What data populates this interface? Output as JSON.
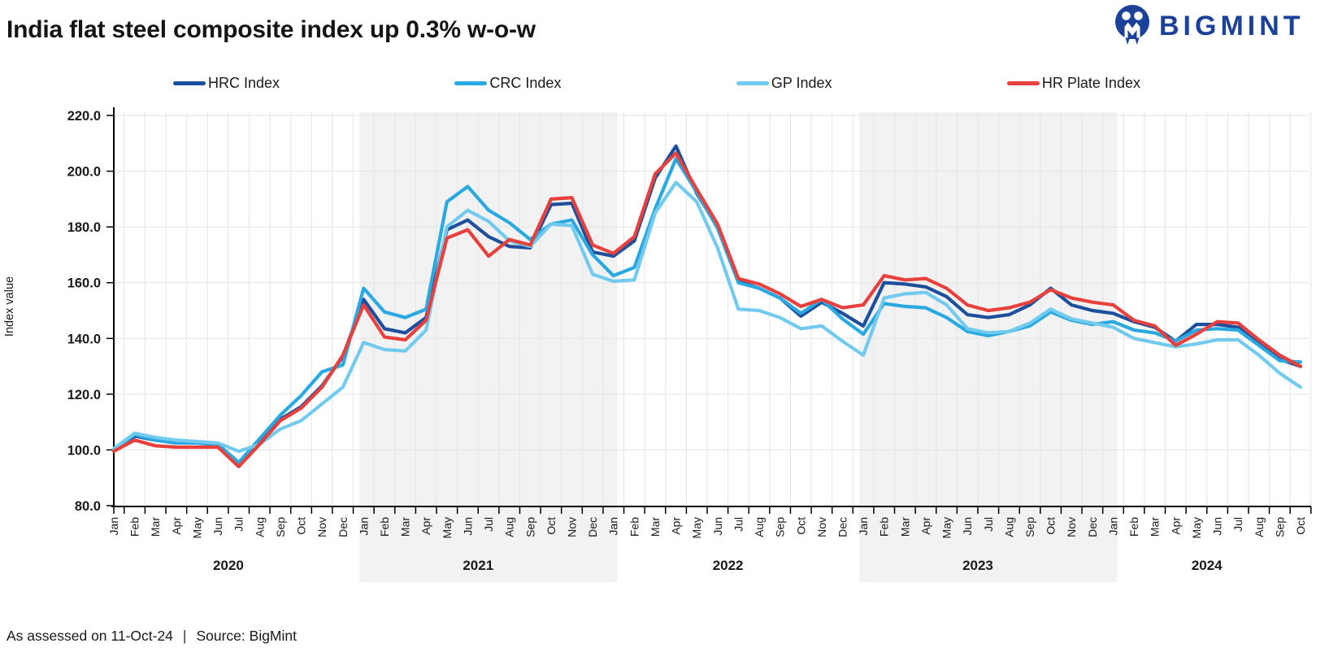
{
  "title": "India flat steel composite index up 0.3% w-o-w",
  "logo": {
    "text": "BIGMINT",
    "color": "#1b4199"
  },
  "footer": {
    "assessed": "As assessed on 11-Oct-24",
    "separator": "|",
    "source": "Source: BigMint"
  },
  "chart_data": {
    "type": "line",
    "title": "India flat steel composite index up 0.3% w-o-w",
    "xlabel": "",
    "ylabel": "Index value",
    "ylim": [
      80,
      220
    ],
    "ytick_step": 20,
    "grid": true,
    "legend_position": "top",
    "band_color": "#f2f2f2",
    "grid_color": "#e4e4e4",
    "axis_color": "#000000",
    "text_color": "#1a1a1a",
    "categories": [
      "Jan",
      "Feb",
      "Mar",
      "Apr",
      "May",
      "Jun",
      "Jul",
      "Aug",
      "Sep",
      "Oct",
      "Nov",
      "Dec",
      "Jan",
      "Feb",
      "Mar",
      "Apr",
      "May",
      "Jun",
      "Jul",
      "Aug",
      "Sep",
      "Oct",
      "Nov",
      "Dec",
      "Jan",
      "Feb",
      "Mar",
      "Apr",
      "May",
      "Jun",
      "Jul",
      "Aug",
      "Sep",
      "Oct",
      "Nov",
      "Dec",
      "Jan",
      "Feb",
      "Mar",
      "Apr",
      "May",
      "Jun",
      "Jul",
      "Aug",
      "Sep",
      "Oct",
      "Nov",
      "Dec",
      "Jan",
      "Feb",
      "Mar",
      "Apr",
      "May",
      "Jun",
      "Jul",
      "Aug",
      "Sep",
      "Oct"
    ],
    "year_groups": [
      {
        "label": "2020",
        "months": 12,
        "shaded": false
      },
      {
        "label": "2021",
        "months": 12,
        "shaded": true
      },
      {
        "label": "2022",
        "months": 12,
        "shaded": false
      },
      {
        "label": "2023",
        "months": 12,
        "shaded": true
      },
      {
        "label": "2024",
        "months": 10,
        "shaded": false
      }
    ],
    "series": [
      {
        "name": "HRC Index",
        "color": "#1e4f9d",
        "values": [
          100,
          105,
          103.5,
          102.5,
          102.5,
          102,
          95.5,
          103,
          111,
          115.5,
          123,
          133.5,
          154,
          143.5,
          142,
          147.5,
          179,
          182.5,
          176.5,
          173,
          172.5,
          188,
          188.5,
          171,
          169.5,
          175,
          197.5,
          209,
          192,
          180,
          160.5,
          158,
          154.5,
          148,
          153,
          149,
          144.5,
          160,
          159.5,
          158.5,
          155,
          148.5,
          147.5,
          148.5,
          152,
          158,
          152,
          150,
          149,
          146,
          144,
          139,
          145,
          145,
          144,
          138,
          132.5,
          130
        ]
      },
      {
        "name": "CRC Index",
        "color": "#2aa9e0",
        "values": [
          100,
          105.5,
          103.5,
          102.5,
          102.5,
          102,
          95.5,
          104,
          112.5,
          119.5,
          128,
          130.5,
          158,
          149.5,
          147.5,
          150.5,
          189,
          194.5,
          186,
          181.5,
          175.5,
          181,
          182.5,
          170,
          162.5,
          165.5,
          186.5,
          204.5,
          192.5,
          179.5,
          160,
          158,
          154.5,
          149,
          154,
          147,
          141.5,
          152.5,
          151.5,
          151,
          147.5,
          142.5,
          141,
          142.5,
          144.5,
          149.5,
          146.5,
          145,
          146,
          143,
          142,
          139,
          143,
          143.5,
          143,
          137.5,
          132,
          131.5
        ]
      },
      {
        "name": "GP Index",
        "color": "#72cbee",
        "values": [
          100.5,
          106,
          104.5,
          103.5,
          103,
          102.5,
          99.5,
          102,
          107.5,
          110.5,
          116.5,
          122.5,
          138.5,
          136,
          135.5,
          143,
          180,
          186,
          182,
          175,
          173,
          181,
          180.5,
          163,
          160.5,
          161,
          185,
          196,
          189,
          172.5,
          150.5,
          150,
          147.5,
          143.5,
          144.5,
          139,
          134,
          154.5,
          156,
          156.5,
          152,
          143.5,
          142,
          142.5,
          145.5,
          150.5,
          147,
          145.5,
          144,
          140,
          138.5,
          137,
          138,
          139.5,
          139.5,
          134,
          127.5,
          122.5
        ]
      },
      {
        "name": "HR Plate Index",
        "color": "#e8413d",
        "values": [
          99.5,
          103.5,
          101.5,
          101,
          101,
          101,
          94,
          102,
          110.5,
          115,
          122.5,
          134,
          152,
          140.5,
          139.5,
          146.5,
          176,
          179,
          169.5,
          175.5,
          173.5,
          190,
          190.5,
          173.5,
          170.5,
          176.5,
          199,
          206.5,
          193.5,
          181,
          161.5,
          159.5,
          156,
          151.5,
          154,
          151,
          152,
          162.5,
          161,
          161.5,
          158,
          152,
          150,
          151,
          153,
          157.5,
          154.5,
          153,
          152,
          146.5,
          144.5,
          137.5,
          141.5,
          146,
          145.5,
          139.5,
          134,
          130
        ]
      }
    ]
  }
}
